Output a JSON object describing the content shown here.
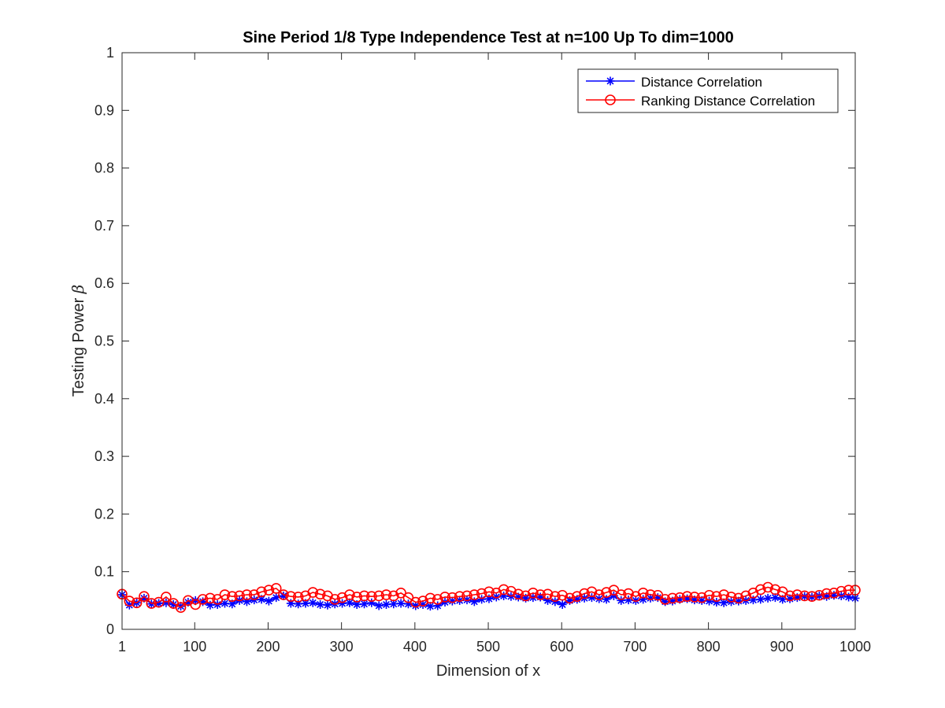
{
  "chart_data": {
    "type": "line",
    "title": "Sine Period 1/8 Type Independence Test at n=100 Up To dim=1000",
    "xlabel": "Dimension of x",
    "ylabel": "Testing Power",
    "ylabel_symbol": "β",
    "xlim": [
      1,
      1000
    ],
    "ylim": [
      0,
      1
    ],
    "xticks": [
      1,
      100,
      200,
      300,
      400,
      500,
      600,
      700,
      800,
      900,
      1000
    ],
    "yticks": [
      0,
      0.1,
      0.2,
      0.3,
      0.4,
      0.5,
      0.6,
      0.7,
      0.8,
      0.9,
      1
    ],
    "ytick_labels": [
      "0",
      "0.1",
      "0.2",
      "0.3",
      "0.4",
      "0.5",
      "0.6",
      "0.7",
      "0.8",
      "0.9",
      "1"
    ],
    "grid": false,
    "legend_position": "top-right",
    "x": [
      1,
      11,
      21,
      31,
      41,
      51,
      61,
      71,
      81,
      91,
      101,
      111,
      121,
      131,
      141,
      151,
      161,
      171,
      181,
      191,
      201,
      211,
      221,
      231,
      241,
      251,
      261,
      271,
      281,
      291,
      301,
      311,
      321,
      331,
      341,
      351,
      361,
      371,
      381,
      391,
      401,
      411,
      421,
      431,
      441,
      451,
      461,
      471,
      481,
      491,
      501,
      511,
      521,
      531,
      541,
      551,
      561,
      571,
      581,
      591,
      601,
      611,
      621,
      631,
      641,
      651,
      661,
      671,
      681,
      691,
      701,
      711,
      721,
      731,
      741,
      751,
      761,
      771,
      781,
      791,
      801,
      811,
      821,
      831,
      841,
      851,
      861,
      871,
      881,
      891,
      901,
      911,
      921,
      931,
      941,
      951,
      961,
      971,
      981,
      991,
      1000
    ],
    "series": [
      {
        "name": "Distance Correlation",
        "color": "#0000ff",
        "marker": "asterisk",
        "values": [
          0.06,
          0.042,
          0.046,
          0.054,
          0.044,
          0.045,
          0.046,
          0.043,
          0.04,
          0.047,
          0.05,
          0.048,
          0.042,
          0.043,
          0.045,
          0.044,
          0.05,
          0.048,
          0.051,
          0.052,
          0.049,
          0.055,
          0.058,
          0.045,
          0.044,
          0.045,
          0.046,
          0.043,
          0.042,
          0.044,
          0.045,
          0.046,
          0.043,
          0.044,
          0.046,
          0.041,
          0.043,
          0.044,
          0.045,
          0.044,
          0.041,
          0.043,
          0.04,
          0.041,
          0.047,
          0.049,
          0.05,
          0.051,
          0.048,
          0.052,
          0.053,
          0.056,
          0.058,
          0.057,
          0.056,
          0.054,
          0.055,
          0.056,
          0.05,
          0.048,
          0.043,
          0.05,
          0.052,
          0.054,
          0.055,
          0.053,
          0.052,
          0.058,
          0.05,
          0.051,
          0.05,
          0.052,
          0.054,
          0.055,
          0.048,
          0.049,
          0.052,
          0.053,
          0.051,
          0.05,
          0.049,
          0.047,
          0.046,
          0.048,
          0.049,
          0.05,
          0.051,
          0.052,
          0.054,
          0.055,
          0.052,
          0.053,
          0.055,
          0.057,
          0.056,
          0.058,
          0.057,
          0.059,
          0.058,
          0.056,
          0.054
        ]
      },
      {
        "name": "Ranking Distance Correlation",
        "color": "#ff0000",
        "marker": "circle",
        "values": [
          0.061,
          0.049,
          0.046,
          0.057,
          0.045,
          0.047,
          0.056,
          0.045,
          0.038,
          0.05,
          0.043,
          0.052,
          0.054,
          0.052,
          0.06,
          0.057,
          0.058,
          0.06,
          0.06,
          0.065,
          0.068,
          0.071,
          0.06,
          0.057,
          0.056,
          0.058,
          0.064,
          0.061,
          0.058,
          0.052,
          0.055,
          0.06,
          0.056,
          0.058,
          0.057,
          0.058,
          0.06,
          0.058,
          0.063,
          0.055,
          0.047,
          0.049,
          0.054,
          0.052,
          0.056,
          0.055,
          0.057,
          0.058,
          0.06,
          0.062,
          0.065,
          0.063,
          0.069,
          0.066,
          0.061,
          0.058,
          0.063,
          0.06,
          0.061,
          0.057,
          0.059,
          0.054,
          0.057,
          0.062,
          0.065,
          0.06,
          0.064,
          0.068,
          0.06,
          0.062,
          0.057,
          0.063,
          0.06,
          0.059,
          0.052,
          0.054,
          0.055,
          0.057,
          0.056,
          0.055,
          0.059,
          0.057,
          0.06,
          0.056,
          0.054,
          0.058,
          0.063,
          0.069,
          0.073,
          0.069,
          0.065,
          0.058,
          0.06,
          0.058,
          0.057,
          0.059,
          0.062,
          0.063,
          0.066,
          0.068,
          0.068
        ]
      }
    ]
  }
}
